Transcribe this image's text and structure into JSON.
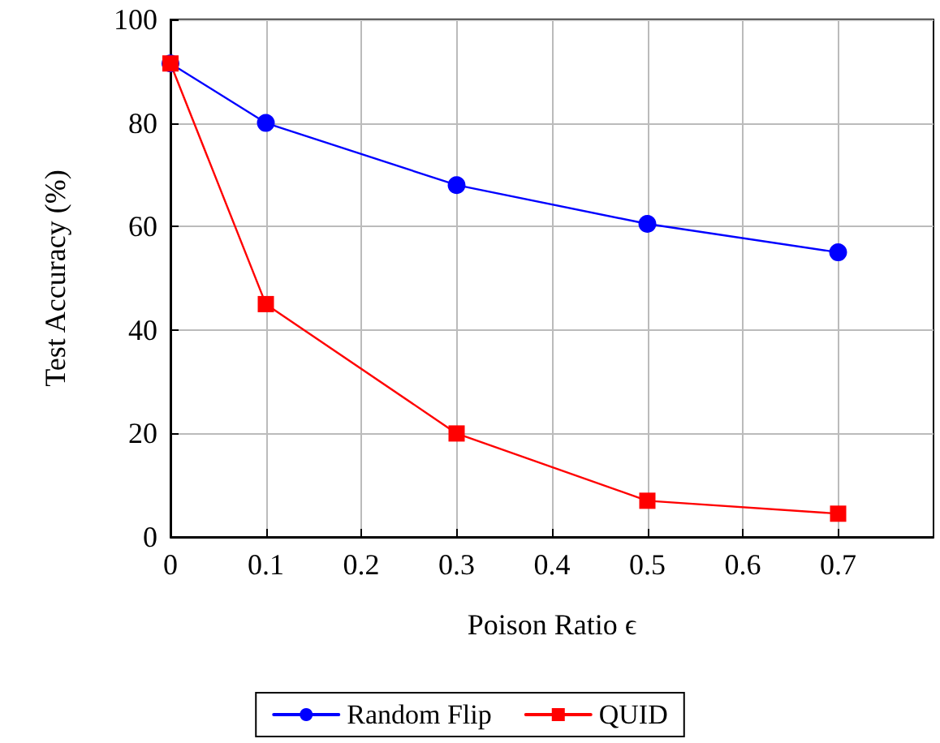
{
  "chart_data": {
    "type": "line",
    "xlabel": "Poison Ratio ϵ",
    "ylabel": "Test Accuracy (%)",
    "x": [
      0,
      0.1,
      0.3,
      0.5,
      0.7
    ],
    "series": [
      {
        "name": "Random Flip",
        "color": "#0000ff",
        "marker": "circle",
        "values": [
          91.5,
          80,
          68,
          60.5,
          55
        ]
      },
      {
        "name": "QUID",
        "color": "#ff0000",
        "marker": "square",
        "values": [
          91.5,
          45,
          20,
          7,
          4.5
        ]
      }
    ],
    "xlim": [
      0,
      0.8
    ],
    "xticks": [
      0,
      0.1,
      0.2,
      0.3,
      0.4,
      0.5,
      0.6,
      0.7
    ],
    "ylim": [
      0,
      100
    ],
    "yticks": [
      0,
      20,
      40,
      60,
      80,
      100
    ],
    "grid": true,
    "legend": "bottom",
    "line_style": "solid"
  }
}
